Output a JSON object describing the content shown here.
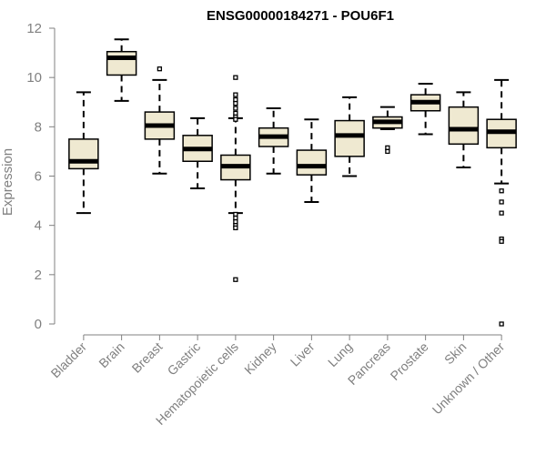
{
  "chart_data": {
    "type": "box",
    "title": "ENSG00000184271 - POU6F1",
    "xlabel": "",
    "ylabel": "Expression",
    "ylim": [
      0,
      12
    ],
    "yticks": [
      0,
      2,
      4,
      6,
      8,
      10,
      12
    ],
    "grid": false,
    "legend": "none",
    "colors": {
      "box_fill": "#efe9d1",
      "box_stroke": "#000000",
      "axis": "#808080"
    },
    "categories": [
      "Bladder",
      "Brain",
      "Breast",
      "Gastric",
      "Hematopoietic cells",
      "Kidney",
      "Liver",
      "Lung",
      "Pancreas",
      "Prostate",
      "Skin",
      "Unknown / Other"
    ],
    "boxes": [
      {
        "category": "Bladder",
        "whisker_low": 4.5,
        "q1": 6.3,
        "median": 6.6,
        "q3": 7.5,
        "whisker_high": 9.4,
        "outliers": []
      },
      {
        "category": "Brain",
        "whisker_low": 9.05,
        "q1": 10.1,
        "median": 10.8,
        "q3": 11.05,
        "whisker_high": 11.55,
        "outliers": []
      },
      {
        "category": "Breast",
        "whisker_low": 6.1,
        "q1": 7.5,
        "median": 8.05,
        "q3": 8.6,
        "whisker_high": 9.9,
        "outliers": [
          10.35
        ]
      },
      {
        "category": "Gastric",
        "whisker_low": 5.5,
        "q1": 6.6,
        "median": 7.1,
        "q3": 7.65,
        "whisker_high": 8.35,
        "outliers": []
      },
      {
        "category": "Hematopoietic cells",
        "whisker_low": 4.5,
        "q1": 5.85,
        "median": 6.4,
        "q3": 6.85,
        "whisker_high": 8.35,
        "outliers": [
          10.0,
          9.3,
          9.1,
          8.95,
          8.75,
          8.55,
          8.4,
          8.3,
          4.45,
          4.3,
          4.15,
          4.0,
          3.9,
          1.8
        ]
      },
      {
        "category": "Kidney",
        "whisker_low": 6.1,
        "q1": 7.2,
        "median": 7.6,
        "q3": 7.95,
        "whisker_high": 8.75,
        "outliers": []
      },
      {
        "category": "Liver",
        "whisker_low": 4.95,
        "q1": 6.05,
        "median": 6.4,
        "q3": 7.05,
        "whisker_high": 8.3,
        "outliers": []
      },
      {
        "category": "Lung",
        "whisker_low": 6.0,
        "q1": 6.8,
        "median": 7.65,
        "q3": 8.25,
        "whisker_high": 9.2,
        "outliers": []
      },
      {
        "category": "Pancreas",
        "whisker_low": 7.9,
        "q1": 7.95,
        "median": 8.2,
        "q3": 8.4,
        "whisker_high": 8.8,
        "outliers": [
          7.15,
          7.0
        ]
      },
      {
        "category": "Prostate",
        "whisker_low": 7.7,
        "q1": 8.65,
        "median": 9.0,
        "q3": 9.3,
        "whisker_high": 9.75,
        "outliers": []
      },
      {
        "category": "Skin",
        "whisker_low": 6.35,
        "q1": 7.3,
        "median": 7.9,
        "q3": 8.8,
        "whisker_high": 9.4,
        "outliers": []
      },
      {
        "category": "Unknown / Other",
        "whisker_low": 5.7,
        "q1": 7.15,
        "median": 7.8,
        "q3": 8.3,
        "whisker_high": 9.9,
        "outliers": [
          5.4,
          4.95,
          4.5,
          3.45,
          3.35,
          0.0
        ]
      }
    ]
  }
}
